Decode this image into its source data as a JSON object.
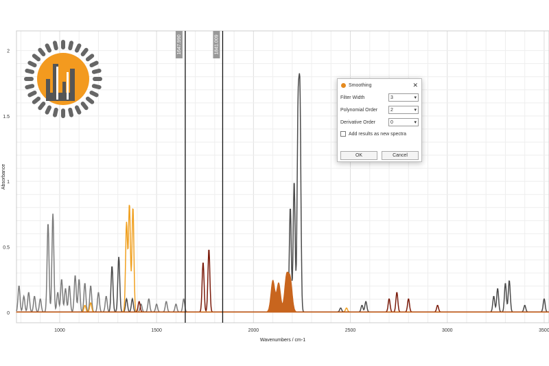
{
  "dialog": {
    "title": "Smoothing",
    "filter_width_label": "Filter Width",
    "filter_width": "3",
    "poly_order_label": "Polynomial Order",
    "poly_order": "2",
    "deriv_order_label": "Derivative Order",
    "deriv_order": "0",
    "add_results_label": "Add results as new spectra",
    "add_results_checked": false,
    "ok": "OK",
    "cancel": "Cancel"
  },
  "cursors": [
    "1647.990",
    "1841.009"
  ],
  "chart_data": {
    "type": "line",
    "xlabel": "Wavenumbers / cm-1",
    "ylabel": "Absorbance",
    "xlim": [
      777,
      3525
    ],
    "ylim": [
      -0.08,
      2.15
    ],
    "grid": true,
    "xticks": [
      "1000",
      "1500",
      "2000",
      "2500",
      "3000",
      "3500"
    ],
    "yticks": [
      "0",
      "0.5",
      "1",
      "1.5",
      "2"
    ],
    "series": [
      {
        "color": "#7a7a7a",
        "peaks": [
          [
            790,
            0.2
          ],
          [
            815,
            0.12
          ],
          [
            840,
            0.15
          ],
          [
            870,
            0.12
          ],
          [
            900,
            0.1
          ],
          [
            940,
            0.68
          ],
          [
            965,
            0.75
          ],
          [
            990,
            0.15
          ],
          [
            1010,
            0.25
          ],
          [
            1030,
            0.18
          ],
          [
            1050,
            0.2
          ],
          [
            1080,
            0.28
          ],
          [
            1100,
            0.25
          ],
          [
            1130,
            0.22
          ],
          [
            1160,
            0.2
          ],
          [
            1200,
            0.15
          ],
          [
            1240,
            0.12
          ],
          [
            1420,
            0.06
          ],
          [
            1460,
            0.1
          ],
          [
            1500,
            0.06
          ],
          [
            1550,
            0.08
          ],
          [
            1600,
            0.06
          ],
          [
            1640,
            0.1
          ]
        ]
      },
      {
        "color": "#4a4a4a",
        "peaks": [
          [
            1270,
            0.35
          ],
          [
            1305,
            0.42
          ],
          [
            1345,
            0.1
          ],
          [
            1375,
            0.1
          ],
          [
            2190,
            0.8
          ],
          [
            2210,
            1.0
          ],
          [
            2230,
            1.45
          ],
          [
            2240,
            1.55
          ],
          [
            2450,
            0.03
          ],
          [
            2560,
            0.05
          ],
          [
            2580,
            0.08
          ],
          [
            3240,
            0.12
          ],
          [
            3260,
            0.18
          ],
          [
            3300,
            0.22
          ],
          [
            3320,
            0.24
          ],
          [
            3400,
            0.05
          ],
          [
            3500,
            0.1
          ]
        ]
      },
      {
        "color": "#f0a020",
        "peaks": [
          [
            1130,
            0.05
          ],
          [
            1160,
            0.07
          ],
          [
            1345,
            0.68
          ],
          [
            1360,
            0.82
          ],
          [
            1378,
            0.8
          ],
          [
            2480,
            0.03
          ]
        ]
      },
      {
        "color": "#7a1a0a",
        "peaks": [
          [
            1410,
            0.08
          ],
          [
            1740,
            0.38
          ],
          [
            1770,
            0.48
          ],
          [
            2700,
            0.1
          ],
          [
            2740,
            0.15
          ],
          [
            2800,
            0.1
          ],
          [
            2950,
            0.05
          ]
        ]
      },
      {
        "color": "#c8651e",
        "fill": true,
        "peaks": [
          [
            2100,
            0.24
          ],
          [
            2130,
            0.22
          ],
          [
            2170,
            0.26
          ],
          [
            2190,
            0.24
          ]
        ]
      }
    ]
  }
}
